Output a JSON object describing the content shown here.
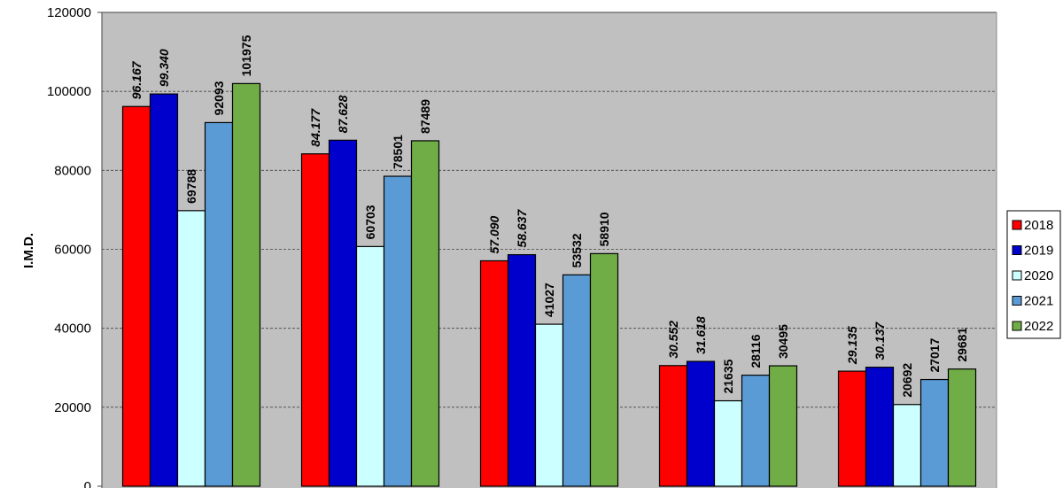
{
  "chart_data": {
    "type": "bar",
    "y_label": "I.M.D.",
    "categories": [
      null,
      null,
      null,
      null,
      null
    ],
    "series": [
      {
        "name": "2018",
        "color": "#ff0000",
        "values": [
          96167,
          84177,
          57090,
          30552,
          29135
        ],
        "value_labels": [
          "96.167",
          "84.177",
          "57.090",
          "30.552",
          "29.135"
        ]
      },
      {
        "name": "2019",
        "color": "#0000cc",
        "values": [
          99340,
          87628,
          58637,
          31618,
          30137
        ],
        "value_labels": [
          "99.340",
          "87.628",
          "58.637",
          "31.618",
          "30.137"
        ]
      },
      {
        "name": "2020",
        "color": "#ccffff",
        "values": [
          69788,
          60703,
          41027,
          21635,
          20692
        ]
      },
      {
        "name": "2021",
        "color": "#5b9bd5",
        "values": [
          92093,
          78501,
          53532,
          28116,
          27017
        ]
      },
      {
        "name": "2022",
        "color": "#70ad47",
        "values": [
          101975,
          87489,
          58910,
          30495,
          29681
        ]
      }
    ],
    "ylim": [
      0,
      120000
    ],
    "yticks": [
      0,
      20000,
      40000,
      60000,
      80000,
      100000,
      120000
    ],
    "grid": true,
    "legend": "right"
  }
}
